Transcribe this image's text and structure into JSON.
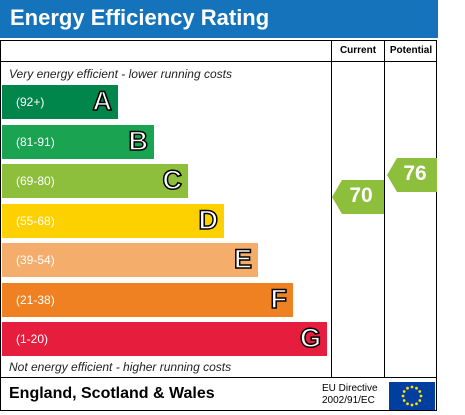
{
  "title": "Energy Efficiency Rating",
  "columns": {
    "current": "Current",
    "potential": "Potential"
  },
  "top_note": "Very energy efficient - lower running costs",
  "bottom_note": "Not energy efficient - higher running costs",
  "footer": {
    "country": "England, Scotland & Wales",
    "directive_line1": "EU Directive",
    "directive_line2": "2002/91/EC"
  },
  "chart_data": {
    "type": "bar",
    "categories": [
      "A",
      "B",
      "C",
      "D",
      "E",
      "F",
      "G"
    ],
    "ranges": [
      "(92+)",
      "(81-91)",
      "(69-80)",
      "(55-68)",
      "(39-54)",
      "(21-38)",
      "(1-20)"
    ],
    "colors": [
      "#00854a",
      "#1aa350",
      "#8dbf3d",
      "#fdd100",
      "#f5ad6c",
      "#ef8122",
      "#e61d3d"
    ],
    "current": {
      "value": 70,
      "band": "C",
      "color": "#8dbf3d"
    },
    "potential": {
      "value": 76,
      "band": "C",
      "color": "#8dbf3d"
    }
  }
}
